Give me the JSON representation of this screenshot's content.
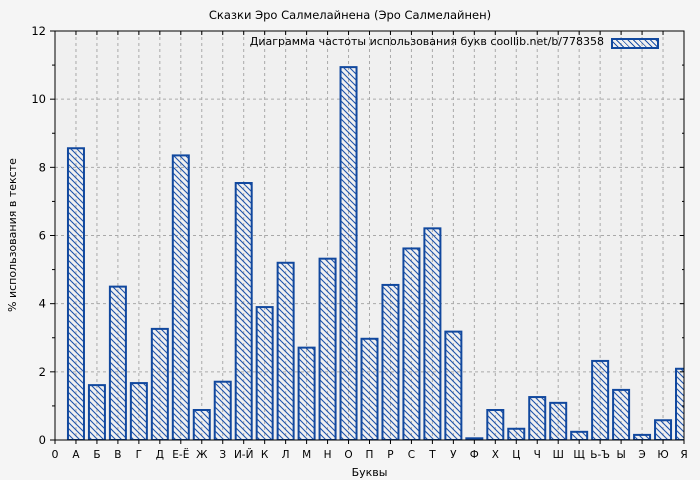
{
  "figure": {
    "title": "Сказки Эро Салмелайнена (Эро Салмелайнен)",
    "legend_label": "Диаграмма частоты использования букв coollib.net/b/778358",
    "xlabel": "Буквы",
    "ylabel": "% использования в тексте",
    "x_origin_label": "0"
  },
  "colors": {
    "bar_outline": "#11489e",
    "bar_hatch": "#1d52aa",
    "grid": "#a9a9a9",
    "frame": "#000000",
    "figure_bg": "#f5f5f5",
    "plot_bg": "#f0f0f0",
    "text": "#000000"
  },
  "chart_data": {
    "type": "bar",
    "title": "Сказки Эро Салмелайнена (Эро Салмелайнен)",
    "xlabel": "Буквы",
    "ylabel": "% использования в тексте",
    "legend": [
      "Диаграмма частоты использования букв coollib.net/b/778358"
    ],
    "legend_position": "top-right",
    "grid": true,
    "hatch": "backslash-diagonal",
    "ylim": [
      0,
      12
    ],
    "yticks": [
      0,
      2,
      4,
      6,
      8,
      10,
      12
    ],
    "x_origin_label": "0",
    "categories": [
      "А",
      "Б",
      "В",
      "Г",
      "Д",
      "Е-Ё",
      "Ж",
      "З",
      "И-Й",
      "К",
      "Л",
      "М",
      "Н",
      "О",
      "П",
      "Р",
      "С",
      "Т",
      "У",
      "Ф",
      "Х",
      "Ц",
      "Ч",
      "Ш",
      "Щ",
      "Ь-Ъ",
      "Ы",
      "Э",
      "Ю",
      "Я"
    ],
    "values": [
      8.56,
      1.61,
      4.5,
      1.67,
      3.26,
      8.35,
      0.88,
      1.71,
      7.54,
      3.9,
      5.2,
      2.71,
      5.32,
      10.94,
      2.97,
      4.55,
      5.62,
      6.21,
      3.18,
      0.05,
      0.88,
      0.33,
      1.26,
      1.09,
      0.24,
      2.32,
      1.47,
      0.15,
      0.58,
      2.09
    ]
  }
}
